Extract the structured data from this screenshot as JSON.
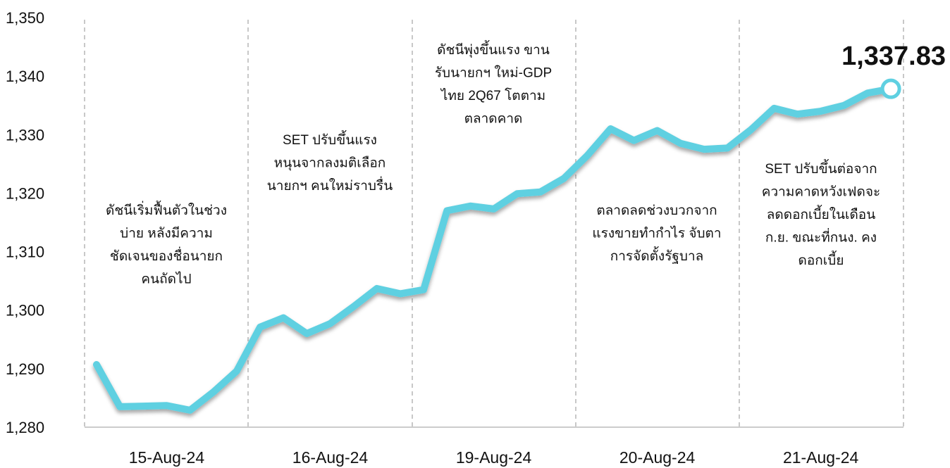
{
  "chart_data": {
    "type": "line",
    "categories": [
      null,
      null,
      null,
      "15-Aug-24",
      null,
      null,
      null,
      null,
      null,
      null,
      "16-Aug-24",
      null,
      null,
      null,
      null,
      null,
      null,
      "19-Aug-24",
      null,
      null,
      null,
      null,
      null,
      null,
      "20-Aug-24",
      null,
      null,
      null,
      null,
      null,
      null,
      "21-Aug-24",
      null,
      null,
      null
    ],
    "values": [
      1290.7,
      1283.5,
      1283.6,
      1283.7,
      1282.9,
      1286.0,
      1289.6,
      1297.1,
      1298.7,
      1296.0,
      1297.7,
      1300.6,
      1303.7,
      1302.8,
      1303.5,
      1317.0,
      1317.8,
      1317.3,
      1319.9,
      1320.2,
      1322.5,
      1326.4,
      1331.0,
      1329.0,
      1330.7,
      1328.5,
      1327.5,
      1327.7,
      1330.8,
      1334.5,
      1333.5,
      1334.0,
      1335.0,
      1337.1,
      1337.83
    ],
    "value_labels": [
      null,
      null,
      null,
      null,
      null,
      null,
      null,
      null,
      null,
      null,
      null,
      null,
      null,
      null,
      null,
      null,
      null,
      null,
      null,
      null,
      null,
      null,
      null,
      null,
      null,
      null,
      null,
      null,
      null,
      null,
      null,
      null,
      null,
      null,
      "1,337.83"
    ],
    "color": "#5fd0e1",
    "ylim": [
      1280,
      1350
    ],
    "yticks": [
      {
        "value": 1280,
        "label": "1,280"
      },
      {
        "value": 1290,
        "label": "1,290"
      },
      {
        "value": 1300,
        "label": "1,300"
      },
      {
        "value": 1310,
        "label": "1,310"
      },
      {
        "value": 1320,
        "label": "1,320"
      },
      {
        "value": 1330,
        "label": "1,330"
      },
      {
        "value": 1340,
        "label": "1,340"
      },
      {
        "value": 1350,
        "label": "1,350"
      }
    ],
    "grid": false,
    "annotations": [
      [
        "ดัชนีเริ่มฟื้นตัวในช่วง",
        "บ่าย หลังมีความ",
        "ชัดเจนของชื่อนายก",
        "คนถัดไป"
      ],
      [
        "SET ปรับขึ้นแรง",
        "หนุนจากลงมติเลือก",
        "นายกฯ คนใหม่ราบรื่น"
      ],
      [
        "ดัชนีพุ่งขึ้นแรง ขาน",
        "รับนายกฯ ใหม่-GDP",
        "ไทย 2Q67 โตตาม",
        "ตลาดคาด"
      ],
      [
        "ตลาดลดช่วงบวกจาก",
        "แรงขายทำกำไร จับตา",
        "การจัดตั้งรัฐบาล"
      ],
      [
        "SET ปรับขึ้นต่อจาก",
        "ความคาดหวังเฟดจะ",
        "ลดดอกเบี้ยในเดือน",
        "ก.ย. ขณะที่กนง. คง",
        "ดอกเบี้ย"
      ]
    ]
  }
}
